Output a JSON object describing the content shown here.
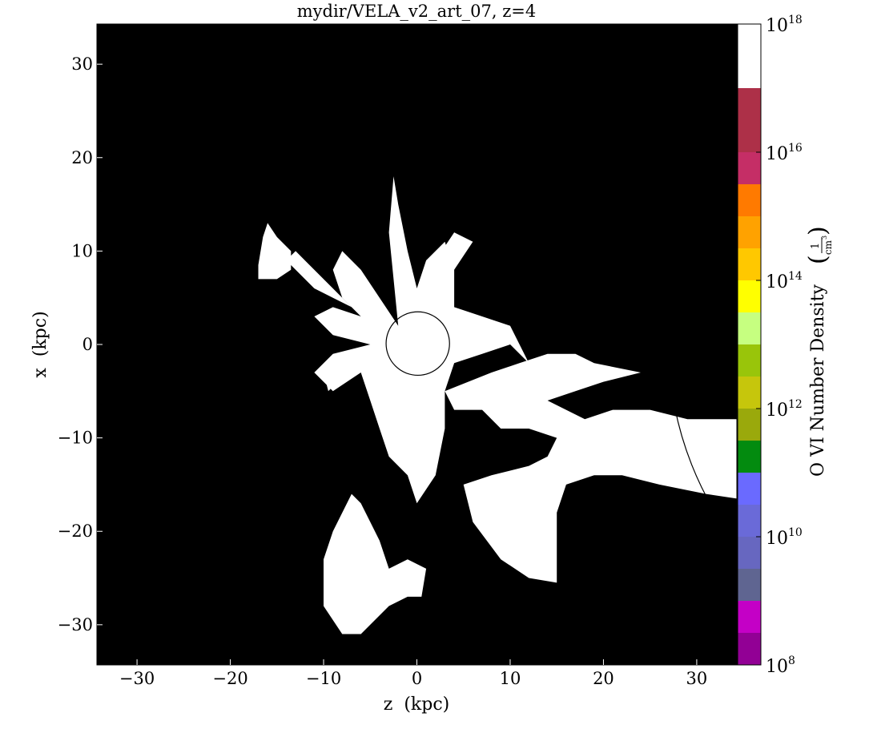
{
  "chart_data": {
    "type": "heatmap",
    "title": "mydir/VELA_v2_art_07, z=4",
    "xlabel": "z  (kpc)",
    "ylabel": "x  (kpc)",
    "xlim": [
      -34.3,
      34.3
    ],
    "ylim": [
      -34.3,
      34.3
    ],
    "xticks": [
      -30,
      -20,
      -10,
      0,
      10,
      20,
      30
    ],
    "yticks": [
      -30,
      -20,
      -10,
      0,
      10,
      20,
      30
    ],
    "xtick_labels": [
      "−30",
      "−20",
      "−10",
      "0",
      "10",
      "20",
      "30"
    ],
    "ytick_labels": [
      "−30",
      "−20",
      "−10",
      "0",
      "10",
      "20",
      "30"
    ],
    "background_color": "#000000",
    "field_color": "#ffffff",
    "colorbar": {
      "label": "O VI Number Density",
      "unit_numerator": "1",
      "unit_denominator": "cm",
      "unit_exponent": "3",
      "scale": "log",
      "range_log10": [
        8,
        18
      ],
      "tick_exponents": [
        8,
        10,
        12,
        14,
        16,
        18
      ],
      "tick_base": "10",
      "bins": [
        {
          "from": 8.0,
          "to": 8.5,
          "color": "#920095"
        },
        {
          "from": 8.5,
          "to": 9.0,
          "color": "#c400c6"
        },
        {
          "from": 9.0,
          "to": 9.5,
          "color": "#5f6591"
        },
        {
          "from": 9.5,
          "to": 10.0,
          "color": "#6767c0"
        },
        {
          "from": 10.0,
          "to": 10.5,
          "color": "#6a6ad8"
        },
        {
          "from": 10.5,
          "to": 11.0,
          "color": "#6a6aff"
        },
        {
          "from": 11.0,
          "to": 11.5,
          "color": "#038b0f"
        },
        {
          "from": 11.5,
          "to": 12.0,
          "color": "#9aa90c"
        },
        {
          "from": 12.0,
          "to": 12.5,
          "color": "#c6c60c"
        },
        {
          "from": 12.5,
          "to": 13.0,
          "color": "#99c50a"
        },
        {
          "from": 13.0,
          "to": 13.5,
          "color": "#c6ff80"
        },
        {
          "from": 13.5,
          "to": 14.0,
          "color": "#ffff00"
        },
        {
          "from": 14.0,
          "to": 14.5,
          "color": "#ffc800"
        },
        {
          "from": 14.5,
          "to": 15.0,
          "color": "#ffa200"
        },
        {
          "from": 15.0,
          "to": 15.5,
          "color": "#ff7a00"
        },
        {
          "from": 15.5,
          "to": 16.0,
          "color": "#c52e66"
        },
        {
          "from": 16.0,
          "to": 16.5,
          "color": "#ad3048"
        },
        {
          "from": 16.5,
          "to": 17.0,
          "color": "#ad3048"
        }
      ]
    },
    "circles": [
      {
        "cx": 0.1,
        "cy": 0.1,
        "r": 3.4
      },
      {
        "cx": 62.0,
        "cy": 0.0,
        "r": 35.0
      }
    ],
    "regions": [
      {
        "name": "central-filaments",
        "points": [
          [
            -2,
            2
          ],
          [
            -4,
            5
          ],
          [
            -6,
            8
          ],
          [
            -8,
            10
          ],
          [
            -9,
            8
          ],
          [
            -8,
            5
          ],
          [
            -6,
            3
          ],
          [
            -9,
            4
          ],
          [
            -11,
            3
          ],
          [
            -9,
            1
          ],
          [
            -5,
            0
          ],
          [
            -9,
            -1
          ],
          [
            -11,
            -3
          ],
          [
            -9,
            -5
          ],
          [
            -6,
            -3
          ],
          [
            -5,
            -6
          ],
          [
            -4,
            -9
          ],
          [
            -3,
            -12
          ],
          [
            -1,
            -14
          ],
          [
            0,
            -17
          ],
          [
            2,
            -14
          ],
          [
            3,
            -9
          ],
          [
            3,
            -5
          ],
          [
            4,
            -2
          ],
          [
            7,
            -1
          ],
          [
            10,
            0
          ],
          [
            12,
            -2
          ],
          [
            10,
            2
          ],
          [
            7,
            3
          ],
          [
            4,
            4
          ],
          [
            4,
            8
          ],
          [
            3,
            11
          ],
          [
            1,
            9
          ],
          [
            0,
            6
          ],
          [
            -1,
            10
          ],
          [
            -2,
            15
          ],
          [
            -2.5,
            18
          ],
          [
            -3,
            12
          ],
          [
            -2.5,
            7
          ]
        ]
      },
      {
        "name": "upper-left-filament",
        "points": [
          [
            -7,
            4
          ],
          [
            -10,
            7
          ],
          [
            -13,
            10
          ],
          [
            -14,
            9
          ],
          [
            -11,
            6
          ],
          [
            -9,
            5
          ]
        ]
      },
      {
        "name": "upper-right-filament",
        "points": [
          [
            2,
            5
          ],
          [
            4,
            8
          ],
          [
            6,
            11
          ],
          [
            4,
            12
          ],
          [
            2,
            9
          ],
          [
            1,
            6
          ]
        ]
      },
      {
        "name": "left-fragment",
        "points": [
          [
            -16.5,
            11.5
          ],
          [
            -16,
            13
          ],
          [
            -15,
            11.5
          ],
          [
            -13.5,
            10
          ],
          [
            -13.5,
            8
          ],
          [
            -15,
            7
          ],
          [
            -17,
            7
          ],
          [
            -17,
            8.5
          ]
        ]
      },
      {
        "name": "lower-left-fragment",
        "points": [
          [
            -9,
            -2
          ],
          [
            -10,
            -3
          ],
          [
            -9.5,
            -5
          ],
          [
            -8.5,
            -4
          ]
        ]
      },
      {
        "name": "southwest-fragment",
        "points": [
          [
            -6,
            -17
          ],
          [
            -7,
            -16
          ],
          [
            -9,
            -20
          ],
          [
            -10,
            -23
          ],
          [
            -10,
            -28
          ],
          [
            -8,
            -31
          ],
          [
            -6,
            -31
          ],
          [
            -3,
            -28
          ],
          [
            -1,
            -27
          ],
          [
            0.5,
            -27
          ],
          [
            1,
            -24
          ],
          [
            -1,
            -23
          ],
          [
            -3,
            -24
          ],
          [
            -4,
            -21
          ],
          [
            -5,
            -19
          ]
        ]
      },
      {
        "name": "eastern-plume",
        "points": [
          [
            3,
            -5
          ],
          [
            8,
            -3
          ],
          [
            11,
            -2
          ],
          [
            14,
            -1
          ],
          [
            17,
            -1
          ],
          [
            19,
            -2
          ],
          [
            24,
            -3
          ],
          [
            20,
            -4
          ],
          [
            17,
            -5
          ],
          [
            14,
            -6
          ],
          [
            18,
            -8
          ],
          [
            21,
            -7
          ],
          [
            25,
            -7
          ],
          [
            29,
            -8
          ],
          [
            31,
            -8
          ],
          [
            34.3,
            -8
          ],
          [
            34.3,
            -16.5
          ],
          [
            31,
            -16
          ],
          [
            26,
            -15
          ],
          [
            22,
            -14
          ],
          [
            19,
            -14
          ],
          [
            16,
            -15
          ],
          [
            15,
            -18
          ],
          [
            15,
            -22
          ],
          [
            15,
            -25.5
          ],
          [
            12,
            -25
          ],
          [
            9,
            -23
          ],
          [
            6,
            -19
          ],
          [
            5,
            -15
          ],
          [
            8,
            -14
          ],
          [
            12,
            -13
          ],
          [
            14,
            -12
          ],
          [
            15,
            -10
          ],
          [
            12,
            -9
          ],
          [
            9,
            -9
          ],
          [
            7,
            -7
          ],
          [
            4,
            -7
          ]
        ]
      }
    ]
  }
}
